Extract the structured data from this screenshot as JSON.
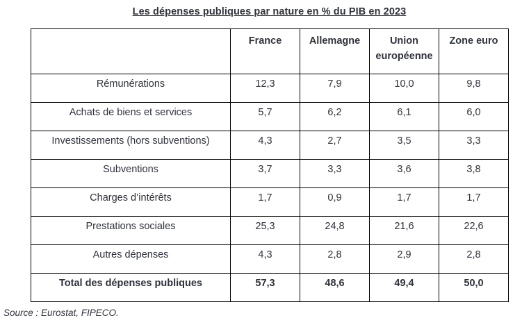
{
  "title": "Les dépenses publiques par nature en % du PIB en 2023",
  "source_note": "Source : Eurostat, FIPECO.",
  "chart_data": {
    "type": "table",
    "title": "Les dépenses publiques par nature en % du PIB en 2023",
    "columns": [
      "",
      "France",
      "Allemagne",
      "Union européenne",
      "Zone euro"
    ],
    "rows": [
      {
        "label": "Rémunérations",
        "values": [
          "12,3",
          "7,9",
          "10,0",
          "9,8"
        ],
        "bold": false
      },
      {
        "label": "Achats de biens et services",
        "values": [
          "5,7",
          "6,2",
          "6,1",
          "6,0"
        ],
        "bold": false
      },
      {
        "label": "Investissements (hors subventions)",
        "values": [
          "4,3",
          "2,7",
          "3,5",
          "3,3"
        ],
        "bold": false
      },
      {
        "label": "Subventions",
        "values": [
          "3,7",
          "3,3",
          "3,6",
          "3,8"
        ],
        "bold": false
      },
      {
        "label": "Charges d’intérêts",
        "values": [
          "1,7",
          "0,9",
          "1,7",
          "1,7"
        ],
        "bold": false
      },
      {
        "label": "Prestations sociales",
        "values": [
          "25,3",
          "24,8",
          "21,6",
          "22,6"
        ],
        "bold": false
      },
      {
        "label": "Autres dépenses",
        "values": [
          "4,3",
          "2,8",
          "2,9",
          "2,8"
        ],
        "bold": false
      },
      {
        "label": "Total des dépenses publiques",
        "values": [
          "57,3",
          "48,6",
          "49,4",
          "50,0"
        ],
        "bold": true
      }
    ],
    "colors": {
      "text": "#30323c",
      "border": "#000000",
      "background": "#ffffff"
    }
  }
}
